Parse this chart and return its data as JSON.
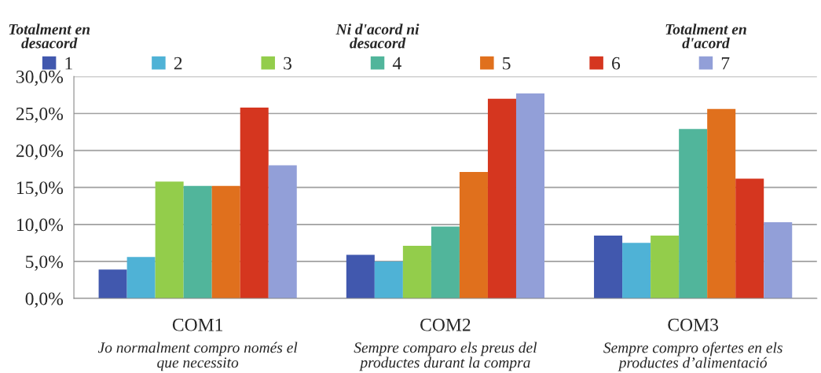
{
  "chart_data": {
    "type": "bar",
    "categories": [
      "COM1",
      "COM2",
      "COM3"
    ],
    "series": [
      {
        "name": "1",
        "color": "#4158ae",
        "values": [
          3.9,
          5.9,
          8.5
        ]
      },
      {
        "name": "2",
        "color": "#4fb2d6",
        "values": [
          5.6,
          5.0,
          7.5
        ]
      },
      {
        "name": "3",
        "color": "#93cd4b",
        "values": [
          15.8,
          7.1,
          8.5
        ]
      },
      {
        "name": "4",
        "color": "#51b59b",
        "values": [
          15.2,
          9.7,
          22.9
        ]
      },
      {
        "name": "5",
        "color": "#e0701d",
        "values": [
          15.2,
          17.1,
          25.6
        ]
      },
      {
        "name": "6",
        "color": "#d5361f",
        "values": [
          25.8,
          27.0,
          16.2
        ]
      },
      {
        "name": "7",
        "color": "#929fd8",
        "values": [
          18.0,
          27.7,
          10.3
        ]
      }
    ],
    "ylim": [
      0,
      30
    ],
    "yticks": [
      {
        "value": 0,
        "label": "0,0%"
      },
      {
        "value": 5,
        "label": "5,0%"
      },
      {
        "value": 10,
        "label": "10,0%"
      },
      {
        "value": 15,
        "label": "15,0%"
      },
      {
        "value": 20,
        "label": "20,0%"
      },
      {
        "value": 25,
        "label": "25,0%"
      },
      {
        "value": 30,
        "label": "30,0%"
      }
    ],
    "grid": "y",
    "legend": "top",
    "annotations": [
      "Totalment en desacord",
      "Ni d'acord ni desacord",
      "Totalment en d'acord",
      "Jo normalment compro només el que necessito",
      "Sempre comparo els preus del productes durant la compra",
      "Sempre compro ofertes en els productes d’alimentació"
    ]
  }
}
